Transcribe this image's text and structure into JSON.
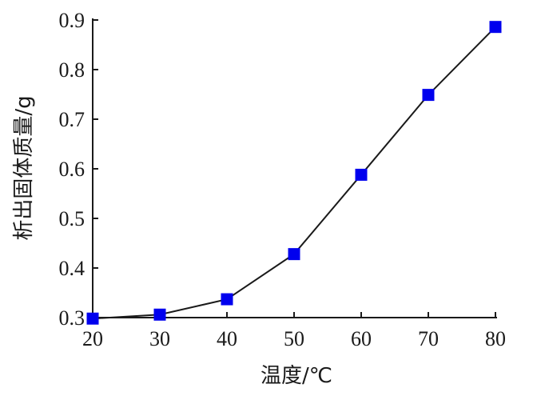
{
  "chart_data": {
    "type": "line",
    "title": "",
    "xlabel": "温度/℃",
    "ylabel": "析出固体质量/g",
    "x": [
      20,
      30,
      40,
      50,
      60,
      70,
      80
    ],
    "series": [
      {
        "values": [
          0.298,
          0.306,
          0.337,
          0.428,
          0.588,
          0.749,
          0.886
        ]
      }
    ],
    "xlim": [
      20,
      80
    ],
    "ylim": [
      0.3,
      0.9
    ],
    "xticks": [
      "20",
      "30",
      "40",
      "50",
      "60",
      "70",
      "80"
    ],
    "yticks": [
      "0.3",
      "0.4",
      "0.5",
      "0.6",
      "0.7",
      "0.8",
      "0.9"
    ],
    "grid": false,
    "line_color": "#1a1a1a",
    "marker_color": "#0000ee",
    "marker": "square"
  }
}
